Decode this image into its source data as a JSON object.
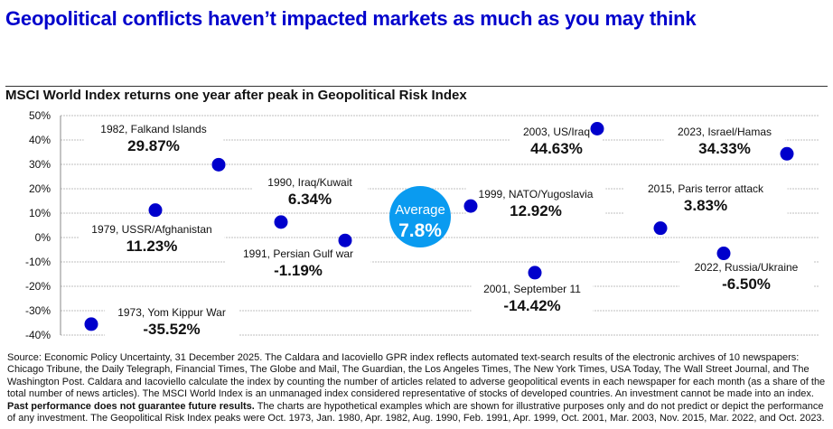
{
  "header": {
    "title": "Geopolitical conflicts haven’t impacted markets as much as you may think"
  },
  "chart_data": {
    "type": "scatter",
    "title": "MSCI World Index returns one year after peak in Geopolitical Risk Index",
    "xlabel": "",
    "ylabel": "",
    "ylim": [
      -40,
      50
    ],
    "yticks": [
      50,
      40,
      30,
      20,
      10,
      0,
      -10,
      -20,
      -30,
      -40
    ],
    "ytick_labels": [
      "50%",
      "40%",
      "30%",
      "20%",
      "10%",
      "0%",
      "-10%",
      "-20%",
      "-30%",
      "-40%"
    ],
    "grid": true,
    "colors": {
      "point": "#0000cc",
      "average": "#0a9bf0",
      "grid": "#bfbfbf"
    },
    "points": [
      {
        "event": "1973, Yom Kippur War",
        "value": -35.52,
        "label": "-35.52%"
      },
      {
        "event": "1979, USSR/Afghanistan",
        "value": 11.23,
        "label": "11.23%"
      },
      {
        "event": "1982, Falkand Islands",
        "value": 29.87,
        "label": "29.87%"
      },
      {
        "event": "1990, Iraq/Kuwait",
        "value": 6.34,
        "label": "6.34%"
      },
      {
        "event": "1991, Persian Gulf war",
        "value": -1.19,
        "label": "-1.19%"
      },
      {
        "event": "1999, NATO/Yugoslavia",
        "value": 12.92,
        "label": "12.92%"
      },
      {
        "event": "2001, September 11",
        "value": -14.42,
        "label": "-14.42%"
      },
      {
        "event": "2003, US/Iraq",
        "value": 44.63,
        "label": "44.63%"
      },
      {
        "event": "2015, Paris terror attack",
        "value": 3.83,
        "label": "3.83%"
      },
      {
        "event": "2022, Russia/Ukraine",
        "value": -6.5,
        "label": "-6.50%"
      },
      {
        "event": "2023, Israel/Hamas",
        "value": 34.33,
        "label": "34.33%"
      }
    ],
    "average": {
      "label": "Average",
      "value": 7.8,
      "value_label": "7.8%"
    }
  },
  "footnote": {
    "text_1": "Source: Economic Policy Uncertainty, 31 December 2025. The Caldara and Iacoviello GPR index reflects automated text-search results of the electronic archives of 10 newspapers: Chicago Tribune, the Daily Telegraph, Financial Times, The Globe and Mail, The Guardian, the Los Angeles Times, The New York Times, USA Today, The Wall Street Journal, and The Washington Post. Caldara and Iacoviello calculate the index by counting the number of articles related to adverse geopolitical events in each newspaper for each month (as a share of the total number of news articles). The MSCI World Index is an unmanaged index considered representative of stocks of developed countries. An investment cannot be made into an index. ",
    "bold": "Past performance does not guarantee future results.",
    "text_2": " The charts are hypothetical examples which are shown for illustrative purposes only and do not predict or depict the performance of any investment. The Geopolitical Risk Index peaks were Oct. 1973, Jan. 1980, Apr. 1982, Aug. 1990, Feb. 1991, Apr. 1999, Oct. 2001, Mar. 2003, Nov. 2015, Mar. 2022, and Oct. 2023."
  }
}
